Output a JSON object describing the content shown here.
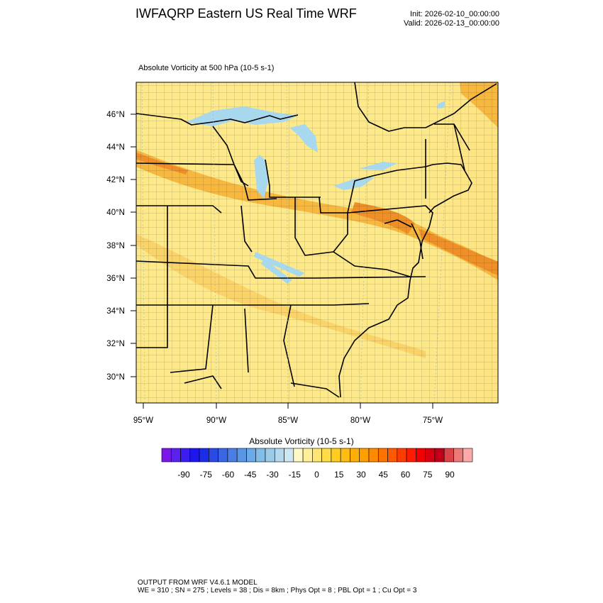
{
  "header": {
    "title": "IWFAQRP Eastern US Real Time WRF",
    "init": "Init: 2026-02-10_00:00:00",
    "valid": "Valid: 2026-02-13_00:00:00"
  },
  "map": {
    "field_title": "Absolute Vorticity at 500 hPa   (10-5 s-1)",
    "lat_labels": [
      "46°N",
      "44°N",
      "42°N",
      "40°N",
      "38°N",
      "36°N",
      "34°N",
      "32°N",
      "30°N"
    ],
    "lon_labels": [
      "95°W",
      "90°W",
      "85°W",
      "80°W",
      "75°W"
    ],
    "colors": {
      "background_fill": "#fde98a",
      "high_band": "#f7b840",
      "peak_band": "#ef8f28",
      "water": "#a8d8ee",
      "border": "#000000"
    }
  },
  "colorbar": {
    "title": "Absolute Vorticity  (10-5 s-1)",
    "tick_labels": [
      "-90",
      "-75",
      "-60",
      "-45",
      "-30",
      "-15",
      "0",
      "15",
      "30",
      "45",
      "60",
      "75",
      "90"
    ],
    "colors": [
      "#7a18e8",
      "#5a22ee",
      "#3a1ef0",
      "#1e16f0",
      "#1a2ee8",
      "#2a4ae6",
      "#3a66e4",
      "#4a7ee4",
      "#5a96e6",
      "#6aaae8",
      "#82bde8",
      "#9ccbea",
      "#b6d8ec",
      "#cce6f2",
      "#fff7c6",
      "#ffef9a",
      "#ffe672",
      "#ffdc48",
      "#ffcc22",
      "#ffbd12",
      "#ffae08",
      "#ff9e00",
      "#ff8a00",
      "#ff7200",
      "#ff5a00",
      "#ff3c00",
      "#ff1c00",
      "#f00000",
      "#d80010",
      "#c00018",
      "#da4448",
      "#ec7878",
      "#fbaaa8"
    ]
  },
  "footer": {
    "line1": "OUTPUT FROM WRF V4.6.1 MODEL",
    "line2": "WE = 310 ; SN = 275 ; Levels = 38 ; Dis = 8km ; Phys Opt = 8 ; PBL Opt = 1 ; Cu Opt = 3"
  }
}
